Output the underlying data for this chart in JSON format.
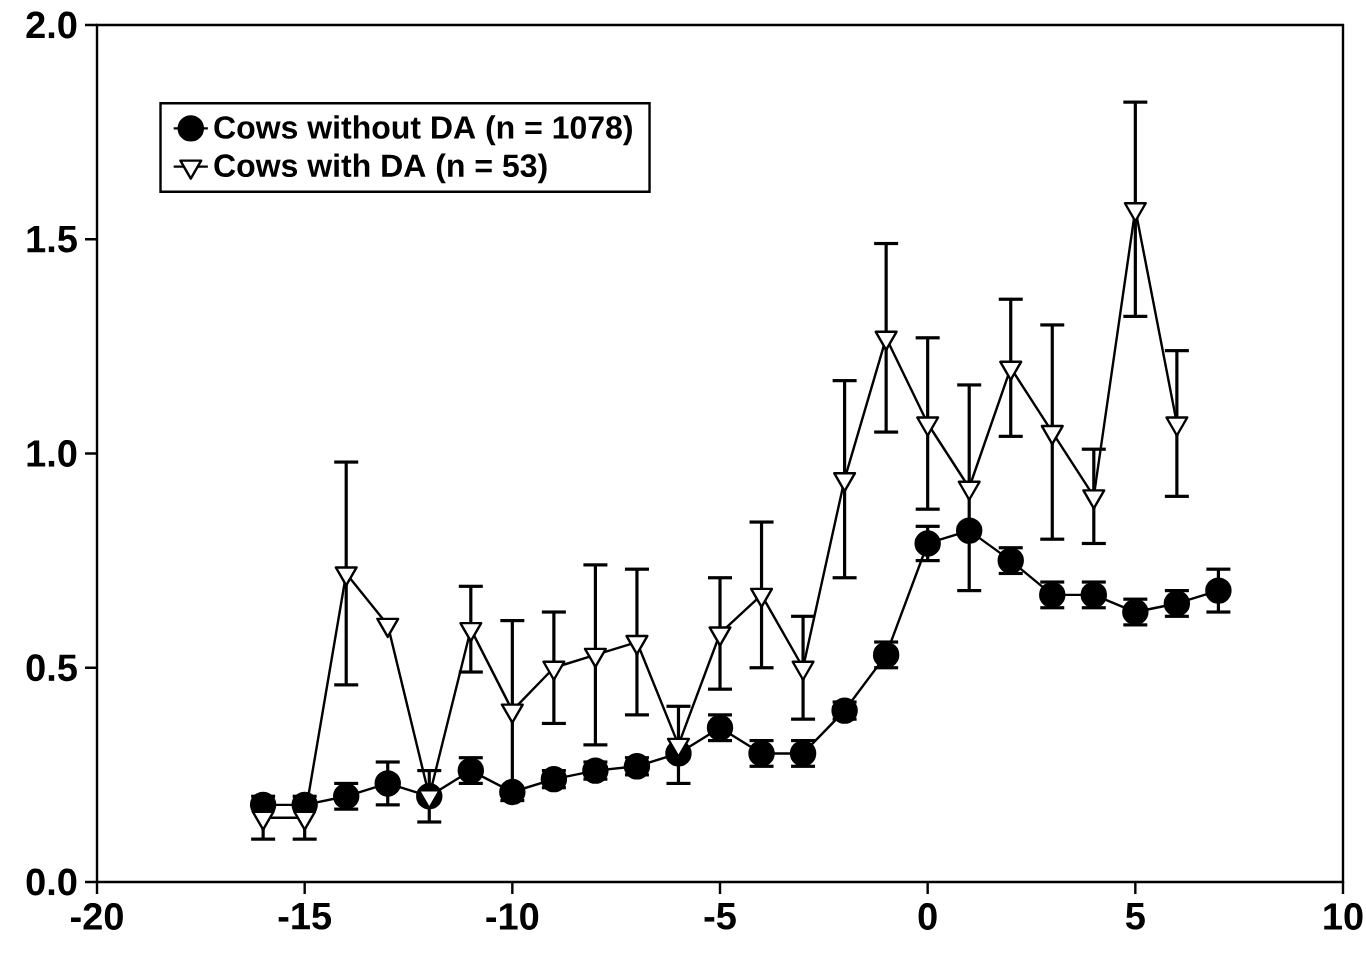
{
  "chart_data": {
    "type": "line",
    "x": [
      -16,
      -15,
      -14,
      -13,
      -12,
      -11,
      -10,
      -9,
      -8,
      -7,
      -6,
      -5,
      -4,
      -3,
      -2,
      -1,
      0,
      1,
      2,
      3,
      4,
      5,
      6,
      7
    ],
    "series": [
      {
        "name": "Cows without DA (n = 1078)",
        "color": "#000000",
        "marker": "circle",
        "values": [
          0.18,
          0.18,
          0.2,
          0.23,
          0.2,
          0.26,
          0.21,
          0.24,
          0.26,
          0.27,
          0.3,
          0.36,
          0.3,
          0.3,
          0.4,
          0.53,
          0.79,
          0.82,
          0.75,
          0.67,
          0.67,
          0.63,
          0.65,
          0.68
        ],
        "errors": [
          null,
          null,
          0.03,
          0.05,
          null,
          0.03,
          null,
          0.02,
          0.02,
          0.02,
          null,
          0.03,
          0.03,
          0.03,
          0.02,
          0.03,
          0.04,
          null,
          0.03,
          0.03,
          0.03,
          0.03,
          0.03,
          0.05
        ]
      },
      {
        "name": "Cows with DA (n = 53)",
        "color": "#000000",
        "marker": "triangle",
        "x": [
          -16,
          -15,
          -14,
          -13,
          -12,
          -11,
          -10,
          -9,
          -8,
          -7,
          -6,
          -5,
          -4,
          -3,
          -2,
          -1,
          0,
          1,
          2,
          3,
          4,
          5,
          6
        ],
        "values": [
          0.15,
          0.15,
          0.72,
          0.6,
          0.2,
          0.59,
          0.4,
          0.5,
          0.53,
          0.56,
          0.32,
          0.58,
          0.67,
          0.5,
          0.94,
          1.27,
          1.07,
          0.92,
          1.2,
          1.05,
          0.9,
          1.57,
          1.07
        ],
        "errors": [
          0.05,
          0.05,
          0.26,
          null,
          0.06,
          0.1,
          0.21,
          0.13,
          0.21,
          0.17,
          0.09,
          0.13,
          0.17,
          0.12,
          0.23,
          0.22,
          0.2,
          0.24,
          0.16,
          0.25,
          0.11,
          0.25,
          0.17
        ]
      }
    ],
    "xlim": [
      -20,
      10
    ],
    "xticks": [
      -20,
      -15,
      -10,
      -5,
      0,
      5,
      10
    ],
    "ylim": [
      0,
      2
    ],
    "yticks": [
      {
        "value": 0,
        "label": "0.0"
      },
      0.5,
      {
        "value": 1,
        "label": "1.0"
      },
      1.5,
      {
        "value": 2,
        "label": "2.0"
      }
    ],
    "legend": "top left",
    "grid": false,
    "line_style": "solid"
  }
}
